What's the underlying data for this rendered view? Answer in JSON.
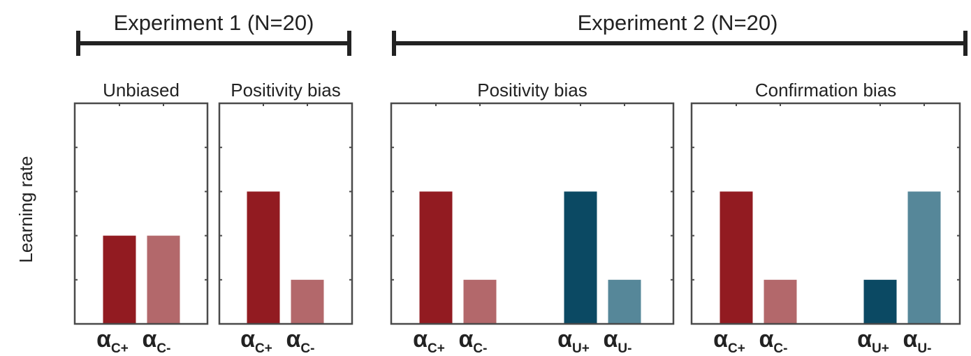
{
  "figure": {
    "ylabel": "Learning rate",
    "experiments": [
      {
        "label": "Experiment 1 (N=20)"
      },
      {
        "label": "Experiment 2 (N=20)"
      }
    ]
  },
  "colors": {
    "chosen_plus": "#921b21",
    "chosen_minus": "#b3686b",
    "unchosen_plus": "#0b4963",
    "unchosen_minus": "#568799",
    "frame": "#4a4a4a",
    "bracket": "#222222"
  },
  "chart_data": [
    {
      "type": "bar",
      "experiment": "Experiment 1 (N=20)",
      "title": "Unbiased",
      "ylabel": "Learning rate",
      "ylim": [
        0,
        1
      ],
      "categories": [
        "αC+",
        "αC-"
      ],
      "tick_labels": [
        {
          "greek": "α",
          "sub": "C+"
        },
        {
          "greek": "α",
          "sub": "C-"
        }
      ],
      "values": [
        0.4,
        0.4
      ],
      "colors": [
        "#921b21",
        "#b3686b"
      ]
    },
    {
      "type": "bar",
      "experiment": "Experiment 1 (N=20)",
      "title": "Positivity bias",
      "ylim": [
        0,
        1
      ],
      "categories": [
        "αC+",
        "αC-"
      ],
      "tick_labels": [
        {
          "greek": "α",
          "sub": "C+"
        },
        {
          "greek": "α",
          "sub": "C-"
        }
      ],
      "values": [
        0.6,
        0.2
      ],
      "colors": [
        "#921b21",
        "#b3686b"
      ]
    },
    {
      "type": "bar",
      "experiment": "Experiment 2 (N=20)",
      "title": "Positivity bias",
      "ylim": [
        0,
        1
      ],
      "categories": [
        "αC+",
        "αC-",
        "αU+",
        "αU-"
      ],
      "tick_labels": [
        {
          "greek": "α",
          "sub": "C+"
        },
        {
          "greek": "α",
          "sub": "C-"
        },
        {
          "greek": "α",
          "sub": "U+"
        },
        {
          "greek": "α",
          "sub": "U-"
        }
      ],
      "values": [
        0.6,
        0.2,
        0.6,
        0.2
      ],
      "colors": [
        "#921b21",
        "#b3686b",
        "#0b4963",
        "#568799"
      ]
    },
    {
      "type": "bar",
      "experiment": "Experiment 2 (N=20)",
      "title": "Confirmation bias",
      "ylim": [
        0,
        1
      ],
      "categories": [
        "αC+",
        "αC-",
        "αU+",
        "αU-"
      ],
      "tick_labels": [
        {
          "greek": "α",
          "sub": "C+"
        },
        {
          "greek": "α",
          "sub": "C-"
        },
        {
          "greek": "α",
          "sub": "U+"
        },
        {
          "greek": "α",
          "sub": "U-"
        }
      ],
      "values": [
        0.6,
        0.2,
        0.2,
        0.6
      ],
      "colors": [
        "#921b21",
        "#b3686b",
        "#0b4963",
        "#568799"
      ]
    }
  ]
}
